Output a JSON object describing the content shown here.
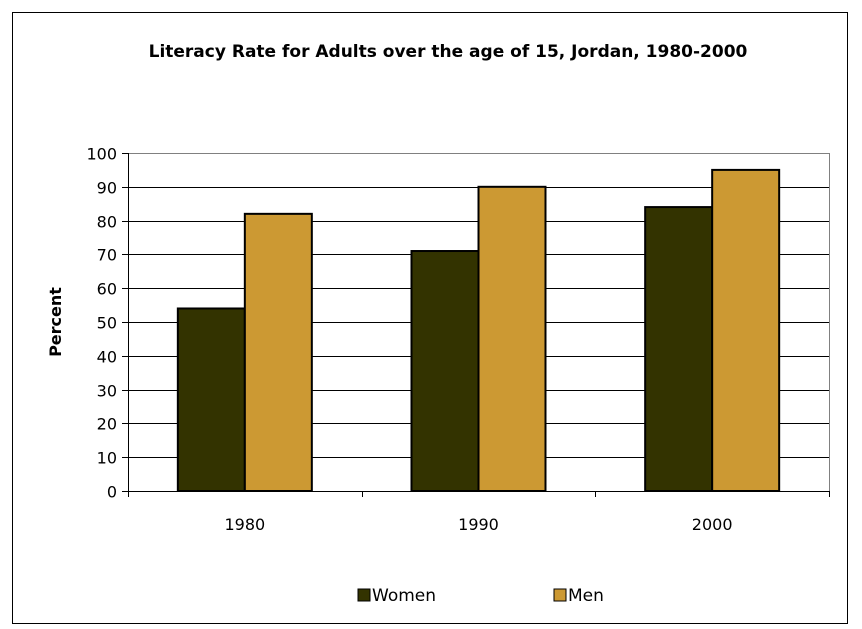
{
  "chart_data": {
    "type": "bar",
    "title": "Literacy Rate for Adults over the age of 15, Jordan, 1980-2000",
    "xlabel": "",
    "ylabel": "Percent",
    "categories": [
      "1980",
      "1990",
      "2000"
    ],
    "series": [
      {
        "name": "Women",
        "values": [
          54,
          71,
          84
        ],
        "color": "#333300"
      },
      {
        "name": "Men",
        "values": [
          82,
          90,
          95
        ],
        "color": "#CC9933"
      }
    ],
    "ylim": [
      0,
      100
    ],
    "yticks": [
      0,
      10,
      20,
      30,
      40,
      50,
      60,
      70,
      80,
      90,
      100
    ],
    "grid": true,
    "legend_position": "bottom"
  }
}
